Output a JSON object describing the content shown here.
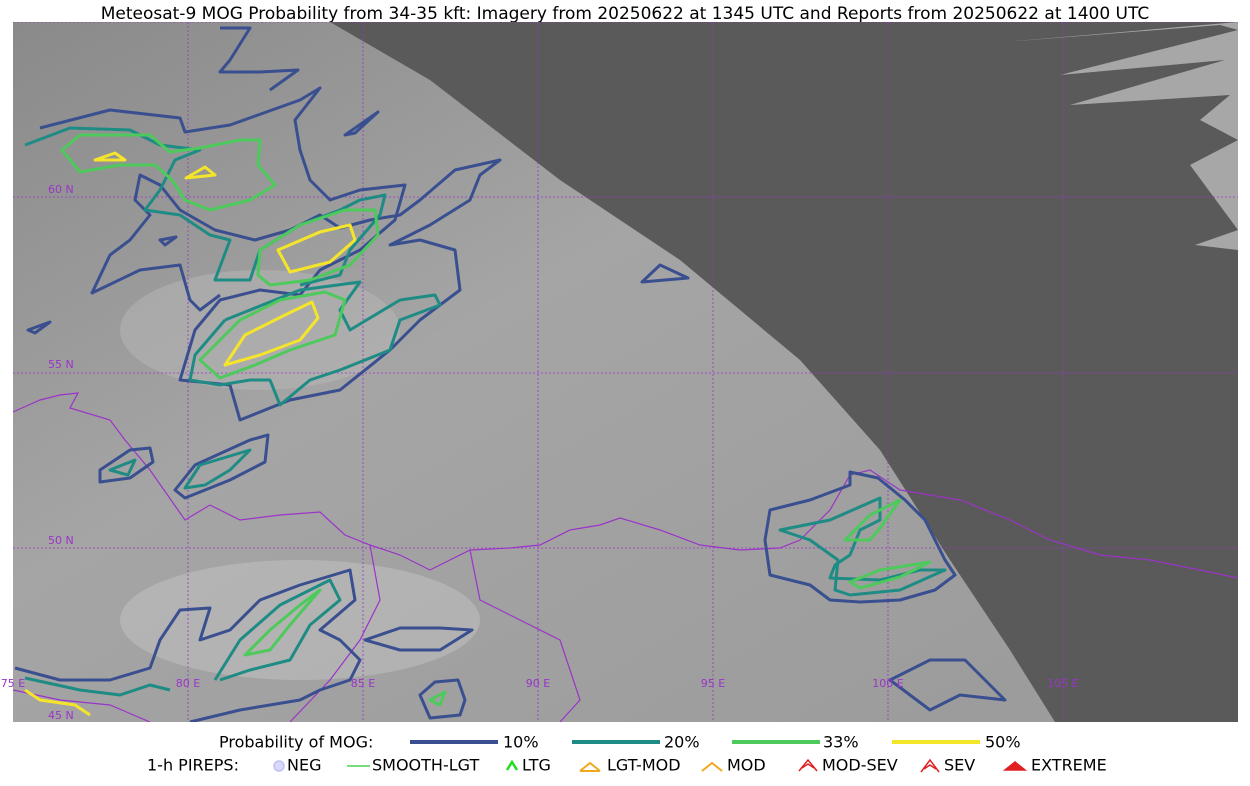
{
  "title": "Meteosat-9 MOG Probability from 34-35 kft: Imagery from 20250622 at 1345 UTC and Reports from 20250622 at 1400 UTC",
  "map": {
    "lat_labels": [
      "60 N",
      "55 N",
      "50 N",
      "45 N"
    ],
    "lon_labels": [
      "75 E",
      "80 E",
      "85 E",
      "90 E",
      "95 E",
      "100 E",
      "105 E"
    ]
  },
  "legend": {
    "probability_title": "Probability of MOG:",
    "levels": [
      {
        "label": "10%",
        "color": "#3a4f8f"
      },
      {
        "label": "20%",
        "color": "#1e8c84"
      },
      {
        "label": "33%",
        "color": "#4ec95c"
      },
      {
        "label": "50%",
        "color": "#f5e52a"
      }
    ],
    "pireps_title": "1-h PIREPS:",
    "pireps": [
      "NEG",
      "SMOOTH-LGT",
      "LTG",
      "LGT-MOD",
      "MOD",
      "MOD-SEV",
      "SEV",
      "EXTREME"
    ]
  }
}
